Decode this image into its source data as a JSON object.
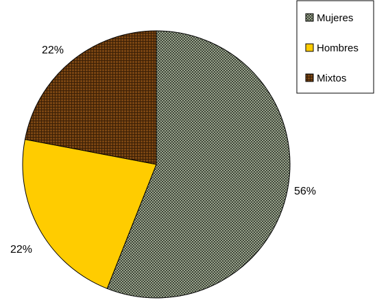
{
  "chart_data": {
    "type": "pie",
    "categories": [
      "Mujeres",
      "Hombres",
      "Mixtos"
    ],
    "values": [
      56,
      22,
      22
    ],
    "data_labels": [
      "56%",
      "22%",
      "22%"
    ],
    "colors": [
      "#848e77",
      "#ffcc00",
      "#6b3b10"
    ],
    "patterns": [
      "checker-fine",
      "solid",
      "grid-fine"
    ],
    "start_direction": "12 o'clock",
    "direction": "clockwise",
    "legend": {
      "placement": "top-right",
      "entries": [
        "Mujeres",
        "Hombres",
        "Mixtos"
      ]
    }
  }
}
